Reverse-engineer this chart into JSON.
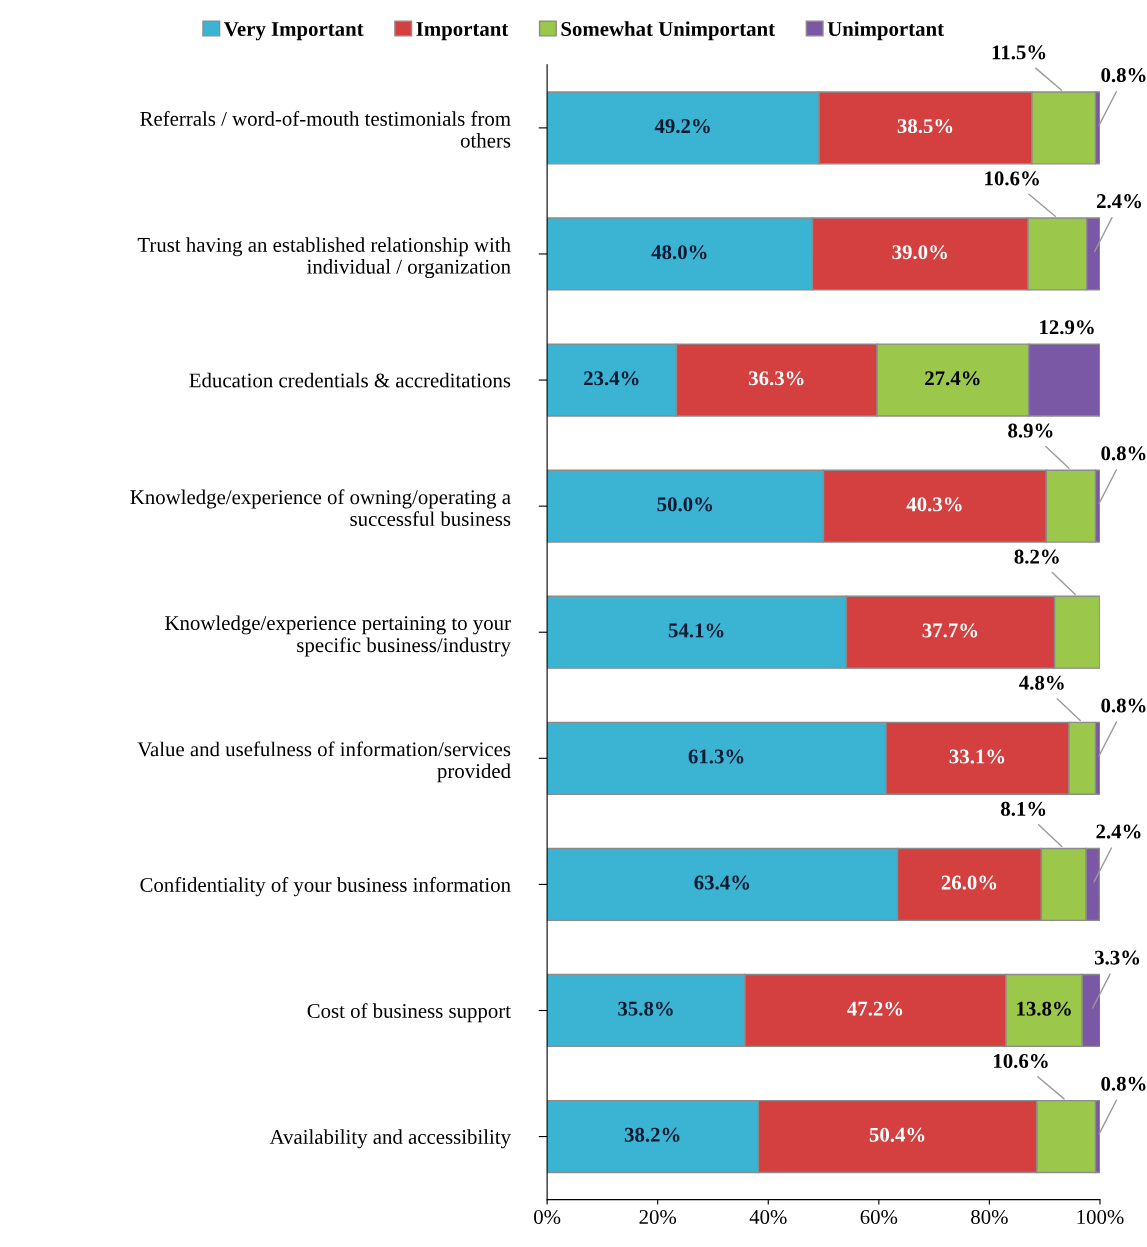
{
  "chart_data": {
    "type": "bar",
    "orientation": "horizontal",
    "stacked": true,
    "legend": "top",
    "grid": false,
    "categories": [
      "Referrals / word-of-mouth testimonials from others",
      "Trust having an established relationship with individual / organization",
      "Education credentials & accreditations",
      "Knowledge/experience of owning/operating a successful business",
      "Knowledge/experience pertaining to your specific business/industry",
      "Value and usefulness of information/services provided",
      "Confidentiality of your business information",
      "Cost of business support",
      "Availability and accessibility"
    ],
    "series": [
      {
        "name": "Very Important",
        "color": "#3bb3d3",
        "values": [
          49.2,
          48.0,
          23.4,
          50.0,
          54.1,
          61.3,
          63.4,
          35.8,
          38.2
        ],
        "value_labels": [
          "49.2%",
          "48.0%",
          "23.4%",
          "50.0%",
          "54.1%",
          "61.3%",
          "63.4%",
          "35.8%",
          "38.2%"
        ]
      },
      {
        "name": "Important",
        "color": "#d43f3f",
        "values": [
          38.5,
          39.0,
          36.3,
          40.3,
          37.7,
          33.1,
          26.0,
          47.2,
          50.4
        ],
        "value_labels": [
          "38.5%",
          "39.0%",
          "36.3%",
          "40.3%",
          "37.7%",
          "33.1%",
          "26.0%",
          "47.2%",
          "50.4%"
        ]
      },
      {
        "name": "Somewhat Unimportant",
        "color": "#9bc74a",
        "values": [
          11.5,
          10.6,
          27.4,
          8.9,
          8.2,
          4.8,
          8.1,
          13.8,
          10.6
        ],
        "value_labels": [
          "11.5%",
          "10.6%",
          "27.4%",
          "8.9%",
          "8.2%",
          "4.8%",
          "8.1%",
          "13.8%",
          "10.6%"
        ]
      },
      {
        "name": "Unimportant",
        "color": "#7b58a6",
        "values": [
          0.8,
          2.4,
          12.9,
          0.8,
          null,
          0.8,
          2.4,
          3.3,
          0.8
        ],
        "value_labels": [
          "0.8%",
          "2.4%",
          "12.9%",
          "0.8%",
          null,
          "0.8%",
          "2.4%",
          "3.3%",
          "0.8%"
        ]
      }
    ],
    "xlim": [
      0,
      100
    ],
    "xticks": [
      {
        "value": 0,
        "label": "0%"
      },
      {
        "value": 20,
        "label": "20%"
      },
      {
        "value": 40,
        "label": "40%"
      },
      {
        "value": 60,
        "label": "60%"
      },
      {
        "value": 80,
        "label": "80%"
      },
      {
        "value": 100,
        "label": "100%"
      }
    ]
  }
}
